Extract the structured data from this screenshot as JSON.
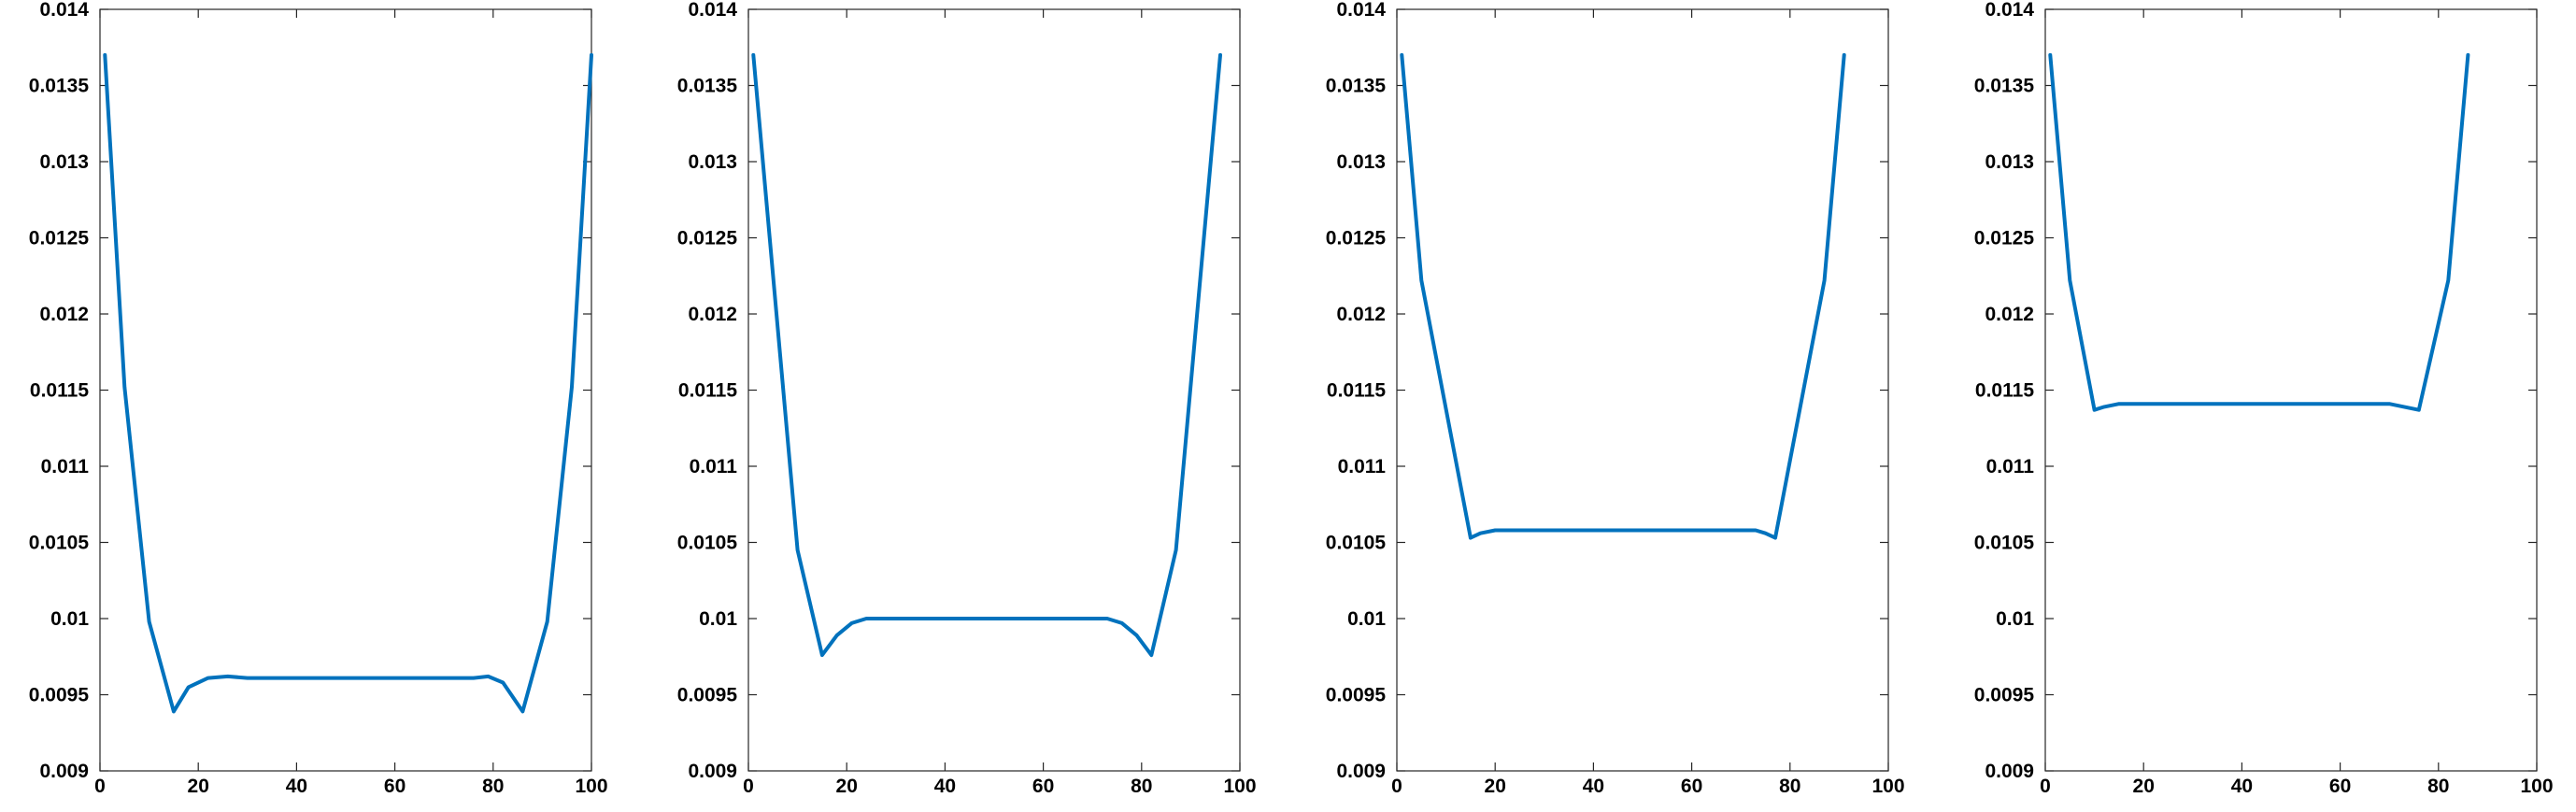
{
  "colors": {
    "series": "#0072bd",
    "axis": "#262626",
    "background": "#ffffff"
  },
  "chart_data": [
    {
      "type": "line",
      "xlim": [
        0,
        100
      ],
      "ylim": [
        0.009,
        0.014
      ],
      "grid": false,
      "xticks": [
        0,
        20,
        40,
        60,
        80,
        100
      ],
      "xtick_labels": [
        "0",
        "20",
        "40",
        "60",
        "80",
        "100"
      ],
      "yticks": [
        0.009,
        0.0095,
        0.01,
        0.0105,
        0.011,
        0.0115,
        0.012,
        0.0125,
        0.013,
        0.0135,
        0.014
      ],
      "ytick_labels": [
        "0.009",
        "0.0095",
        "0.01",
        "0.0105",
        "0.011",
        "0.0115",
        "0.012",
        "0.0125",
        "0.013",
        "0.0135",
        "0.014"
      ],
      "series": [
        {
          "x": [
            1,
            5,
            10,
            15,
            18,
            22,
            26,
            30,
            40,
            50,
            60,
            70,
            76,
            79,
            82,
            86,
            91,
            96,
            100
          ],
          "y": [
            0.0137,
            0.01152,
            0.00998,
            0.00939,
            0.00955,
            0.00961,
            0.00962,
            0.00961,
            0.00961,
            0.00961,
            0.00961,
            0.00961,
            0.00961,
            0.00962,
            0.00958,
            0.00939,
            0.00998,
            0.01152,
            0.0137
          ]
        }
      ]
    },
    {
      "type": "line",
      "xlim": [
        0,
        100
      ],
      "ylim": [
        0.009,
        0.014
      ],
      "grid": false,
      "xticks": [
        0,
        20,
        40,
        60,
        80,
        100
      ],
      "xtick_labels": [
        "0",
        "20",
        "40",
        "60",
        "80",
        "100"
      ],
      "yticks": [
        0.009,
        0.0095,
        0.01,
        0.0105,
        0.011,
        0.0115,
        0.012,
        0.0125,
        0.013,
        0.0135,
        0.014
      ],
      "ytick_labels": [
        "0.009",
        "0.0095",
        "0.01",
        "0.0105",
        "0.011",
        "0.0115",
        "0.012",
        "0.0125",
        "0.013",
        "0.0135",
        "0.014"
      ],
      "series": [
        {
          "x": [
            1,
            10,
            15,
            18,
            21,
            24,
            30,
            40,
            50,
            60,
            70,
            73,
            76,
            79,
            82,
            87,
            96
          ],
          "y": [
            0.0137,
            0.01045,
            0.00976,
            0.00989,
            0.00997,
            0.01,
            0.01,
            0.01,
            0.01,
            0.01,
            0.01,
            0.01,
            0.00997,
            0.00989,
            0.00976,
            0.01045,
            0.0137
          ]
        }
      ]
    },
    {
      "type": "line",
      "xlim": [
        0,
        100
      ],
      "ylim": [
        0.009,
        0.014
      ],
      "grid": false,
      "xticks": [
        0,
        20,
        40,
        60,
        80,
        100
      ],
      "xtick_labels": [
        "0",
        "20",
        "40",
        "60",
        "80",
        "100"
      ],
      "yticks": [
        0.009,
        0.0095,
        0.01,
        0.0105,
        0.011,
        0.0115,
        0.012,
        0.0125,
        0.013,
        0.0135,
        0.014
      ],
      "ytick_labels": [
        "0.009",
        "0.0095",
        "0.01",
        "0.0105",
        "0.011",
        "0.0115",
        "0.012",
        "0.0125",
        "0.013",
        "0.0135",
        "0.014"
      ],
      "series": [
        {
          "x": [
            1,
            5,
            15,
            17,
            20,
            30,
            40,
            50,
            60,
            70,
            73,
            75,
            77,
            87,
            91
          ],
          "y": [
            0.0137,
            0.01222,
            0.01053,
            0.01056,
            0.01058,
            0.01058,
            0.01058,
            0.01058,
            0.01058,
            0.01058,
            0.01058,
            0.01056,
            0.01053,
            0.01222,
            0.0137
          ]
        }
      ]
    },
    {
      "type": "line",
      "xlim": [
        0,
        100
      ],
      "ylim": [
        0.009,
        0.014
      ],
      "grid": false,
      "xticks": [
        0,
        20,
        40,
        60,
        80,
        100
      ],
      "xtick_labels": [
        "0",
        "20",
        "40",
        "60",
        "80",
        "100"
      ],
      "yticks": [
        0.009,
        0.0095,
        0.01,
        0.0105,
        0.011,
        0.0115,
        0.012,
        0.0125,
        0.013,
        0.0135,
        0.014
      ],
      "ytick_labels": [
        "0.009",
        "0.0095",
        "0.01",
        "0.0105",
        "0.011",
        "0.0115",
        "0.012",
        "0.0125",
        "0.013",
        "0.0135",
        "0.014"
      ],
      "series": [
        {
          "x": [
            1,
            5,
            10,
            12,
            15,
            20,
            40,
            60,
            70,
            73,
            76,
            82,
            86
          ],
          "y": [
            0.0137,
            0.01222,
            0.01137,
            0.01139,
            0.01141,
            0.01141,
            0.01141,
            0.01141,
            0.01141,
            0.01139,
            0.01137,
            0.01222,
            0.0137
          ]
        }
      ]
    }
  ]
}
